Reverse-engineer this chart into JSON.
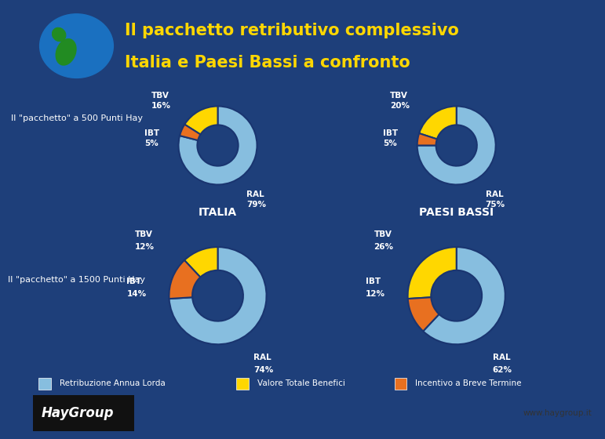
{
  "title_line1": "Il pacchetto retributivo complessivo",
  "title_line2": "Italia e Paesi Bassi a confronto",
  "bg_color": "#1e3f7a",
  "panel_bg_color": "#1e3f7a",
  "chart_panel_color": "#1a3570",
  "title_color": "#FFD700",
  "donut_bg_color": "#1a3570",
  "donut_colors": {
    "RAL": "#87BEDF",
    "TBV": "#FFD700",
    "IBT": "#E87020"
  },
  "charts": [
    {
      "slices": [
        79,
        16,
        5
      ]
    },
    {
      "slices": [
        75,
        20,
        5
      ]
    },
    {
      "slices": [
        74,
        12,
        14
      ]
    },
    {
      "slices": [
        62,
        26,
        12
      ]
    }
  ],
  "row_labels": [
    "Il \"pacchetto\" a 500 Punti Hay",
    "Il \"pacchetto\" a 1500 Punti Hay"
  ],
  "col_titles": [
    "ITALIA",
    "PAESI BASSI"
  ],
  "legend_items": [
    {
      "label": "Retribuzione Annua Lorda",
      "color": "#87BEDF"
    },
    {
      "label": "Valore Totale Benefici",
      "color": "#FFD700"
    },
    {
      "label": "Incentivo a Breve Termine",
      "color": "#E87020"
    }
  ],
  "footer_bg": "#d4c870",
  "footer_text": "www.haygroup.it",
  "haygroup_text": "HayGroup"
}
